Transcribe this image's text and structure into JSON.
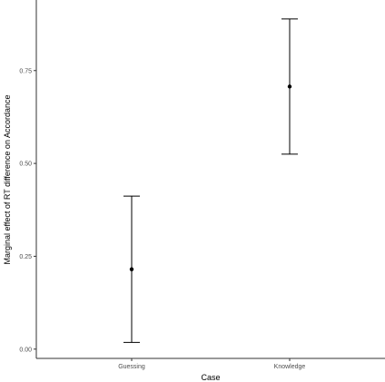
{
  "chart_data": {
    "type": "scatter",
    "subtype": "point-with-error-bars",
    "title": "",
    "xlabel": "Case",
    "ylabel": "Marginal effect of RT difference on Accordance",
    "categories": [
      "Guessing",
      "Knowledge"
    ],
    "series": [
      {
        "points": [
          {
            "category": "Guessing",
            "estimate": 0.215,
            "lower": 0.018,
            "upper": 0.412
          },
          {
            "category": "Knowledge",
            "estimate": 0.707,
            "lower": 0.525,
            "upper": 0.889
          }
        ]
      }
    ],
    "yticks": [
      0.0,
      0.25,
      0.5,
      0.75
    ],
    "ytick_labels": [
      "0.00",
      "0.25",
      "0.50",
      "0.75"
    ],
    "ylim": [
      -0.025,
      0.94
    ],
    "grid": false,
    "legend": "none",
    "colors": {
      "points": "#000000",
      "error_bars": "#000000",
      "axis": "#333333",
      "tick_labels": "#4d4d4d",
      "background": "#ffffff"
    }
  }
}
